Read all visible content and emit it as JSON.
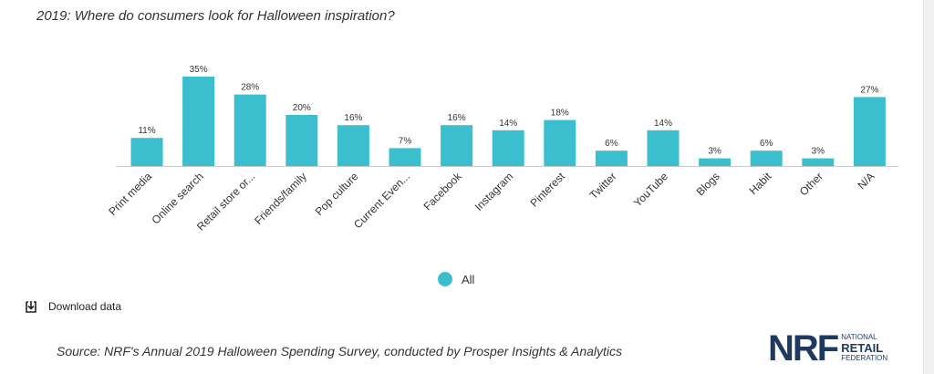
{
  "chart_data": {
    "type": "bar",
    "title": "2019: Where do consumers look for Halloween inspiration?",
    "categories": [
      "Print media",
      "Online search",
      "Retail store or...",
      "Friends/family",
      "Pop culture",
      "Current Even...",
      "Facebook",
      "Instagram",
      "Pinterest",
      "Twitter",
      "YouTube",
      "Blogs",
      "Habit",
      "Other",
      "N/A"
    ],
    "series": [
      {
        "name": "All",
        "values": [
          11,
          35,
          28,
          20,
          16,
          7,
          16,
          14,
          18,
          6,
          14,
          3,
          6,
          3,
          27
        ],
        "labels": [
          "11%",
          "35%",
          "28%",
          "20%",
          "16%",
          "7%",
          "16%",
          "14%",
          "18%",
          "6%",
          "14%",
          "3%",
          "6%",
          "3%",
          "27%"
        ]
      }
    ],
    "ylim": [
      0,
      35
    ],
    "grid": false,
    "legend": "bottom-center",
    "bar_color": "#3bbfce"
  },
  "legend": {
    "label": "All",
    "color": "#3bbfce"
  },
  "download": {
    "label": "Download data",
    "icon": "download-icon"
  },
  "source": "Source: NRF's Annual 2019 Halloween Spending Survey, conducted by Prosper Insights & Analytics",
  "logo": {
    "mark": "NRF",
    "line1": "National",
    "line2": "Retail",
    "line3": "Federation"
  }
}
